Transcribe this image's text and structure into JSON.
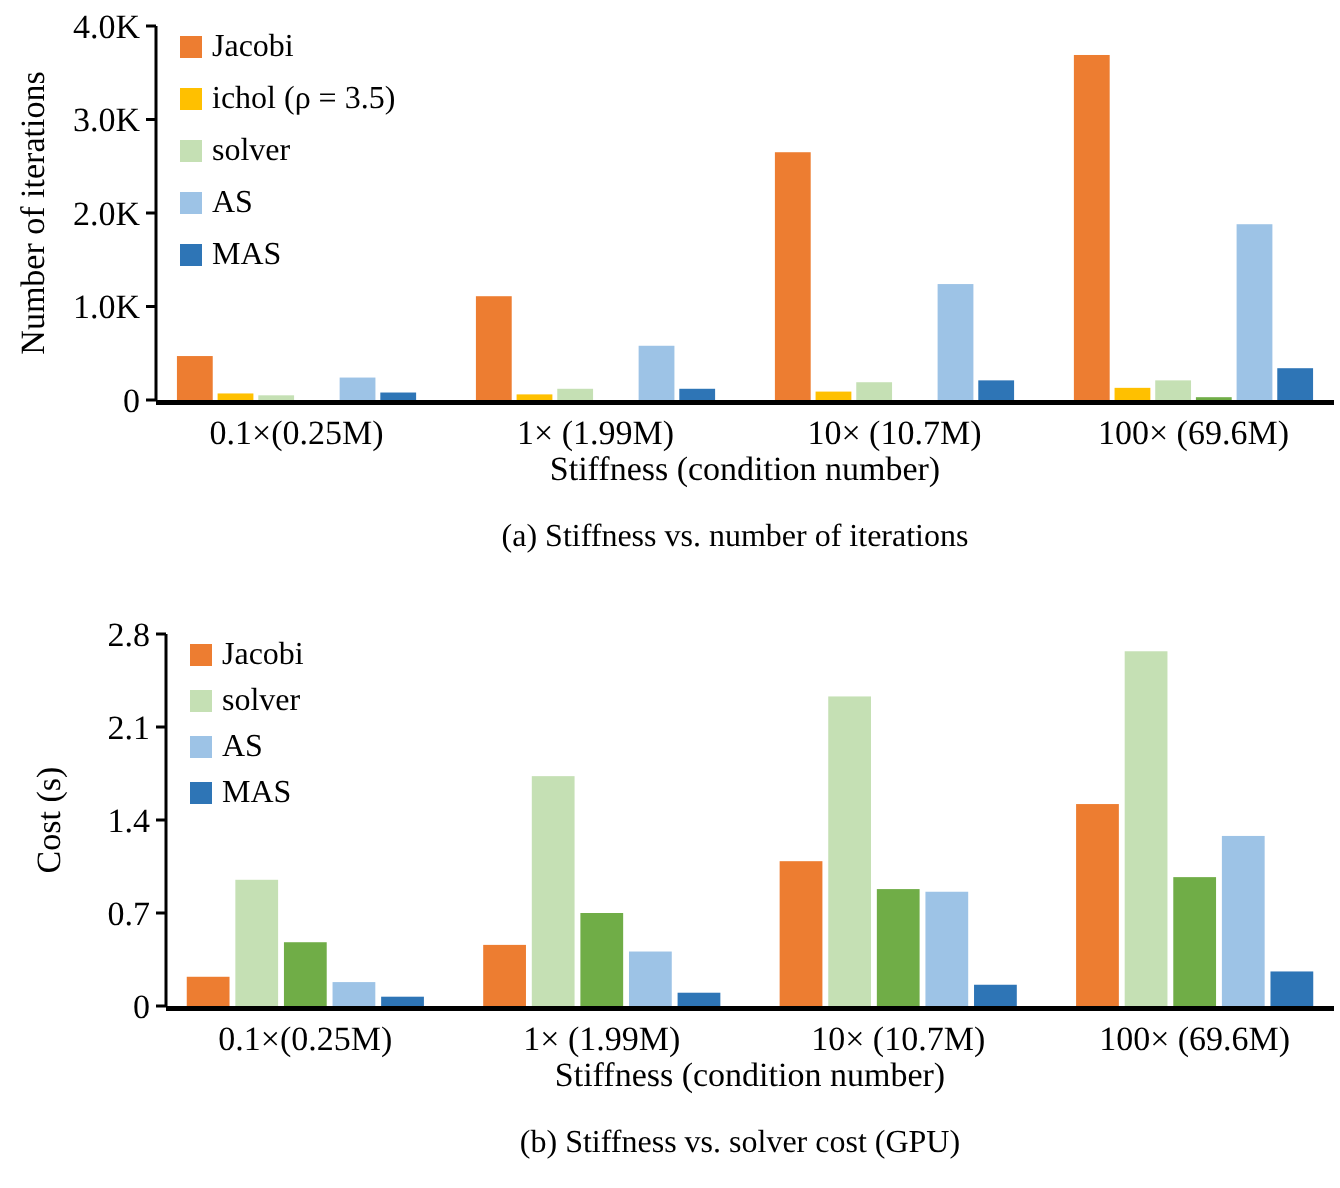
{
  "chart_data": [
    {
      "type": "bar",
      "title": "(a)  Stiffness vs. number of iterations",
      "xlabel": "Stiffness (condition number)",
      "ylabel": "Number of iterations",
      "categories": [
        "0.1×(0.25M)",
        "1× (1.99M)",
        "10× (10.7M)",
        "100× (69.6M)"
      ],
      "ylim": [
        0,
        4000
      ],
      "yticks": [
        {
          "value": 0,
          "label": "0"
        },
        {
          "value": 1000,
          "label": "1.0K"
        },
        {
          "value": 2000,
          "label": "2.0K"
        },
        {
          "value": 3000,
          "label": "3.0K"
        },
        {
          "value": 4000,
          "label": "4.0K"
        }
      ],
      "legend": "top left",
      "grid": false,
      "series": [
        {
          "name": "Jacobi",
          "color": "#ed7d31",
          "values": [
            470,
            1110,
            2650,
            3690
          ]
        },
        {
          "name": "ichol (ρ = 3.5)",
          "color": "#ffc000",
          "values": [
            70,
            60,
            90,
            130
          ]
        },
        {
          "name": "solver",
          "color": "#c5e0b4",
          "values": [
            50,
            120,
            190,
            210
          ]
        },
        {
          "color": "#70ad47",
          "values": [
            null,
            null,
            null,
            30
          ]
        },
        {
          "name": "AS",
          "color": "#9dc3e6",
          "values": [
            240,
            580,
            1240,
            1880
          ]
        },
        {
          "name": "MAS",
          "color": "#2e75b6",
          "values": [
            80,
            120,
            210,
            340
          ]
        }
      ]
    },
    {
      "type": "bar",
      "title": "(b)  Stiffness vs. solver cost (GPU)",
      "xlabel": "Stiffness (condition number)",
      "ylabel": "Cost (s)",
      "categories": [
        "0.1×(0.25M)",
        "1× (1.99M)",
        "10× (10.7M)",
        "100× (69.6M)"
      ],
      "ylim": [
        0,
        2.8
      ],
      "yticks": [
        0,
        0.7,
        1.4,
        2.1,
        2.8
      ],
      "legend": "top left",
      "grid": false,
      "series": [
        {
          "name": "Jacobi",
          "color": "#ed7d31",
          "values": [
            0.22,
            0.46,
            1.09,
            1.52
          ]
        },
        {
          "name": "solver",
          "color": "#c5e0b4",
          "values": [
            0.95,
            1.73,
            2.33,
            2.67
          ]
        },
        {
          "color": "#70ad47",
          "values": [
            0.48,
            0.7,
            0.88,
            0.97
          ]
        },
        {
          "name": "AS",
          "color": "#9dc3e6",
          "values": [
            0.18,
            0.41,
            0.86,
            1.28
          ]
        },
        {
          "name": "MAS",
          "color": "#2e75b6",
          "values": [
            0.07,
            0.1,
            0.16,
            0.26
          ]
        }
      ]
    }
  ]
}
